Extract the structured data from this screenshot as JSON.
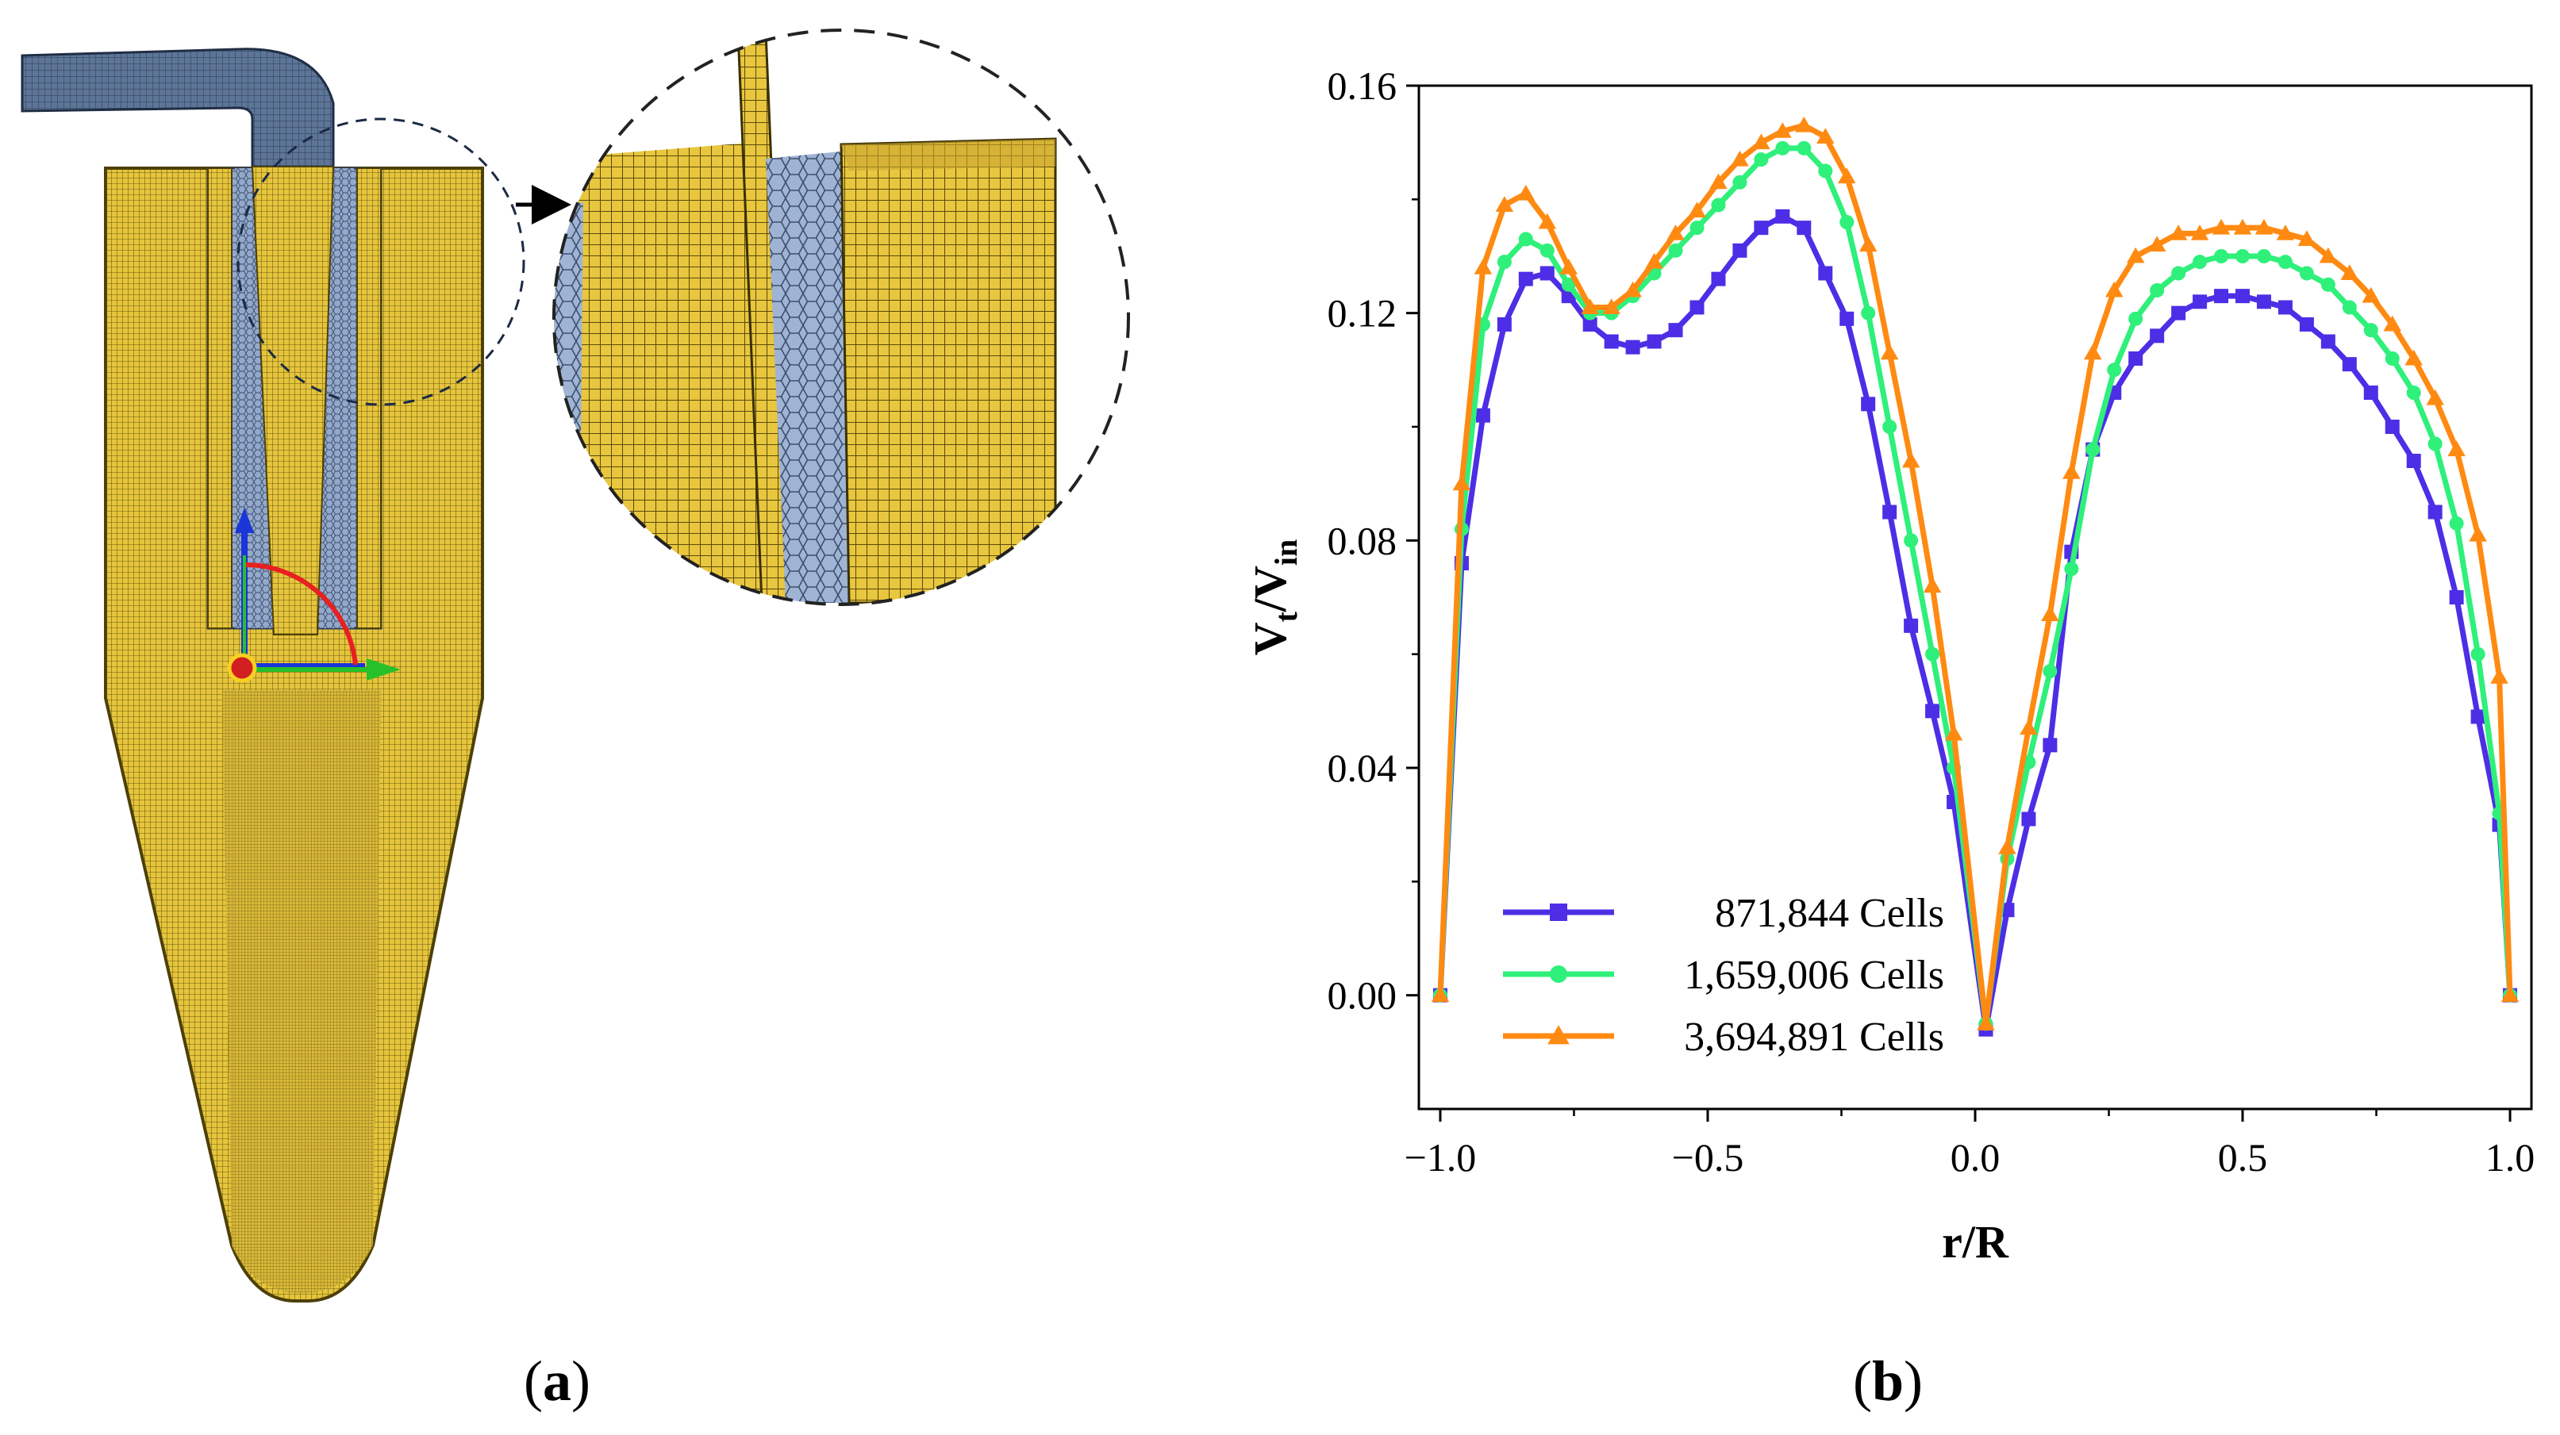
{
  "figure": {
    "panel_a": {
      "label_open": "(",
      "label_letter": "a",
      "label_close": ")"
    },
    "panel_b": {
      "label_open": "(",
      "label_letter": "b",
      "label_close": ")"
    }
  },
  "colors": {
    "mesh_gold": "#e2c23a",
    "mesh_blue": "#8ea4c6",
    "series_1": "#4d2ee6",
    "series_2": "#2ef07a",
    "series_3": "#ff8a12"
  },
  "chart_data": {
    "type": "line",
    "title": "",
    "xlabel": "r/R",
    "ylabel_main": "V",
    "ylabel_sub1": "t",
    "ylabel_sep": "/V",
    "ylabel_sub2": "in",
    "xlim": [
      -1.0,
      1.0
    ],
    "ylim": [
      -0.02,
      0.16
    ],
    "xticks": [
      -1.0,
      -0.5,
      0.0,
      0.5,
      1.0
    ],
    "xtick_labels": [
      "−1.0",
      "−0.5",
      "0.0",
      "0.5",
      "1.0"
    ],
    "yticks": [
      0.0,
      0.04,
      0.08,
      0.12,
      0.16
    ],
    "ytick_labels": [
      "0.00",
      "0.04",
      "0.08",
      "0.12",
      "0.16"
    ],
    "grid": false,
    "legend_position": "bottom-left",
    "series": [
      {
        "name": "871,844 Cells",
        "color": "#4d2ee6",
        "marker": "square",
        "x": [
          -1.0,
          -0.96,
          -0.92,
          -0.88,
          -0.84,
          -0.8,
          -0.76,
          -0.72,
          -0.68,
          -0.64,
          -0.6,
          -0.56,
          -0.52,
          -0.48,
          -0.44,
          -0.4,
          -0.36,
          -0.32,
          -0.28,
          -0.24,
          -0.2,
          -0.16,
          -0.12,
          -0.08,
          -0.04,
          0.02,
          0.06,
          0.1,
          0.14,
          0.18,
          0.22,
          0.26,
          0.3,
          0.34,
          0.38,
          0.42,
          0.46,
          0.5,
          0.54,
          0.58,
          0.62,
          0.66,
          0.7,
          0.74,
          0.78,
          0.82,
          0.86,
          0.9,
          0.94,
          0.98,
          1.0
        ],
        "y": [
          0.0,
          0.076,
          0.102,
          0.118,
          0.126,
          0.127,
          0.123,
          0.118,
          0.115,
          0.114,
          0.115,
          0.117,
          0.121,
          0.126,
          0.131,
          0.135,
          0.137,
          0.135,
          0.127,
          0.119,
          0.104,
          0.085,
          0.065,
          0.05,
          0.034,
          -0.006,
          0.015,
          0.031,
          0.044,
          0.078,
          0.096,
          0.106,
          0.112,
          0.116,
          0.12,
          0.122,
          0.123,
          0.123,
          0.122,
          0.121,
          0.118,
          0.115,
          0.111,
          0.106,
          0.1,
          0.094,
          0.085,
          0.07,
          0.049,
          0.03,
          0.0
        ]
      },
      {
        "name": "1,659,006 Cells",
        "color": "#2ef07a",
        "marker": "circle",
        "x": [
          -1.0,
          -0.96,
          -0.92,
          -0.88,
          -0.84,
          -0.8,
          -0.76,
          -0.72,
          -0.68,
          -0.64,
          -0.6,
          -0.56,
          -0.52,
          -0.48,
          -0.44,
          -0.4,
          -0.36,
          -0.32,
          -0.28,
          -0.24,
          -0.2,
          -0.16,
          -0.12,
          -0.08,
          -0.04,
          0.02,
          0.06,
          0.1,
          0.14,
          0.18,
          0.22,
          0.26,
          0.3,
          0.34,
          0.38,
          0.42,
          0.46,
          0.5,
          0.54,
          0.58,
          0.62,
          0.66,
          0.7,
          0.74,
          0.78,
          0.82,
          0.86,
          0.9,
          0.94,
          0.98,
          1.0
        ],
        "y": [
          0.0,
          0.082,
          0.118,
          0.129,
          0.133,
          0.131,
          0.125,
          0.12,
          0.12,
          0.123,
          0.127,
          0.131,
          0.135,
          0.139,
          0.143,
          0.147,
          0.149,
          0.149,
          0.145,
          0.136,
          0.12,
          0.1,
          0.08,
          0.06,
          0.04,
          -0.005,
          0.024,
          0.041,
          0.057,
          0.075,
          0.096,
          0.11,
          0.119,
          0.124,
          0.127,
          0.129,
          0.13,
          0.13,
          0.13,
          0.129,
          0.127,
          0.125,
          0.121,
          0.117,
          0.112,
          0.106,
          0.097,
          0.083,
          0.06,
          0.032,
          0.0
        ]
      },
      {
        "name": "3,694,891 Cells",
        "color": "#ff8a12",
        "marker": "triangle",
        "x": [
          -1.0,
          -0.96,
          -0.92,
          -0.88,
          -0.84,
          -0.8,
          -0.76,
          -0.72,
          -0.68,
          -0.64,
          -0.6,
          -0.56,
          -0.52,
          -0.48,
          -0.44,
          -0.4,
          -0.36,
          -0.32,
          -0.28,
          -0.24,
          -0.2,
          -0.16,
          -0.12,
          -0.08,
          -0.04,
          0.02,
          0.06,
          0.1,
          0.14,
          0.18,
          0.22,
          0.26,
          0.3,
          0.34,
          0.38,
          0.42,
          0.46,
          0.5,
          0.54,
          0.58,
          0.62,
          0.66,
          0.7,
          0.74,
          0.78,
          0.82,
          0.86,
          0.9,
          0.94,
          0.98,
          1.0
        ],
        "y": [
          0.0,
          0.09,
          0.128,
          0.139,
          0.141,
          0.136,
          0.128,
          0.121,
          0.121,
          0.124,
          0.129,
          0.134,
          0.138,
          0.143,
          0.147,
          0.15,
          0.152,
          0.153,
          0.151,
          0.144,
          0.132,
          0.113,
          0.094,
          0.072,
          0.046,
          -0.005,
          0.026,
          0.047,
          0.067,
          0.092,
          0.113,
          0.124,
          0.13,
          0.132,
          0.134,
          0.134,
          0.135,
          0.135,
          0.135,
          0.134,
          0.133,
          0.13,
          0.127,
          0.123,
          0.118,
          0.112,
          0.105,
          0.096,
          0.081,
          0.056,
          0.0
        ]
      }
    ]
  }
}
